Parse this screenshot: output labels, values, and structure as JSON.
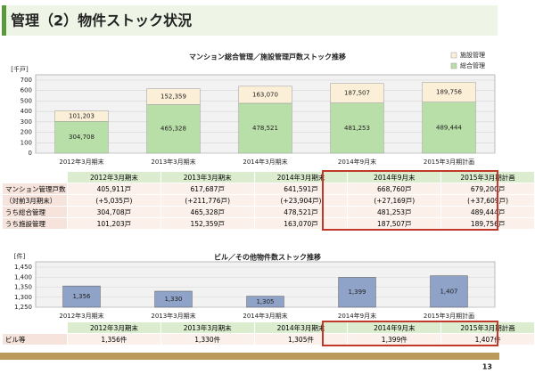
{
  "header": {
    "title": "管理（2）物件ストック状況"
  },
  "page_number": "13",
  "chart_data": [
    {
      "type": "stacked_bar",
      "title": "マンション総合管理／施設管理戸数ストック推移",
      "y_unit": "[千戸]",
      "categories": [
        "2012年3月期末",
        "2013年3月期末",
        "2014年3月期末",
        "2014年9月末",
        "2015年3月期計画"
      ],
      "series": [
        {
          "name": "総合管理",
          "color": "#b9dfa8",
          "values": [
            304.708,
            465.328,
            478.521,
            481.253,
            489.444
          ],
          "value_labels": [
            "304,708",
            "465,328",
            "478,521",
            "481,253",
            "489,444"
          ]
        },
        {
          "name": "施設管理",
          "color": "#fcefd8",
          "values": [
            101.203,
            152.359,
            163.07,
            187.507,
            189.756
          ],
          "value_labels": [
            "101,203",
            "152,359",
            "163,070",
            "187,507",
            "189,756"
          ]
        }
      ],
      "ylim": [
        0,
        700
      ],
      "yticks": [
        0,
        100,
        200,
        300,
        400,
        500,
        600,
        700
      ],
      "grid": true,
      "legend": "upper right"
    },
    {
      "type": "bar",
      "title": "ビル／その他物件数ストック推移",
      "y_unit": "[件]",
      "categories": [
        "2012年3月期末",
        "2013年3月期末",
        "2014年3月期末",
        "2014年9月末",
        "2015年3月期計画"
      ],
      "values": [
        1356,
        1330,
        1305,
        1399,
        1407
      ],
      "value_labels": [
        "1,356",
        "1,330",
        "1,305",
        "1,399",
        "1,407"
      ],
      "color": "#8fa2c8",
      "ylim": [
        1250,
        1450
      ],
      "yticks": [
        {
          "value": 1250,
          "label": "1,250"
        },
        {
          "value": 1300,
          "label": "1,300"
        },
        {
          "value": 1350,
          "label": "1,350"
        },
        {
          "value": 1400,
          "label": "1,400"
        },
        {
          "value": 1450,
          "label": "1,450"
        }
      ],
      "grid": true
    }
  ],
  "tables": [
    {
      "header": [
        "2012年3月期末",
        "2013年3月期末",
        "2014年3月期末",
        "2014年9月末",
        "2015年3月期計画"
      ],
      "rows": [
        [
          "マンション管理戸数",
          "405,911戸",
          "617,687戸",
          "641,591戸",
          "668,760戸",
          "679,200戸"
        ],
        [
          "（対前3月期末）",
          "(+5,035戸)",
          "(+211,776戸)",
          "(+23,904戸)",
          "(+27,169戸)",
          "(+37,609戸)"
        ],
        [
          "うち総合管理",
          "304,708戸",
          "465,328戸",
          "478,521戸",
          "481,253戸",
          "489,444戸"
        ],
        [
          "うち施設管理",
          "101,203戸",
          "152,359戸",
          "163,070戸",
          "187,507戸",
          "189,756戸"
        ]
      ]
    },
    {
      "header": [
        "2012年3月期末",
        "2013年3月期末",
        "2014年3月期末",
        "2014年9月末",
        "2015年3月期計画"
      ],
      "rows": [
        [
          "ビル等",
          "1,356件",
          "1,330件",
          "1,305件",
          "1,399件",
          "1,407件"
        ]
      ]
    }
  ]
}
